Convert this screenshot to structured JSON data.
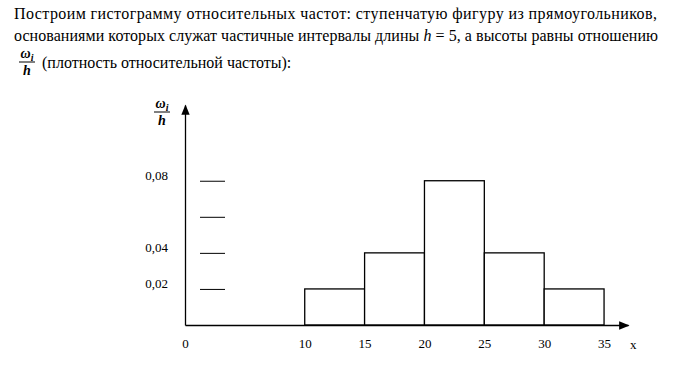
{
  "chart_data": {
    "type": "histogram",
    "annotations": [
      "Построим гистограмму относительных частот: ступенчатую фигуру из прямоугольников,",
      [
        "основаниями которых служат частичные интервалы длины ",
        "h",
        " = 5, а высоты равны отношению"
      ],
      "(плотность относительной частоты):"
    ],
    "ylabel": {
      "numerator": "ω",
      "subscript": "i",
      "denominator": "h"
    },
    "xlabel": "x",
    "bins": [
      10,
      15,
      20,
      25,
      30,
      35
    ],
    "values": [
      0.02,
      0.04,
      0.08,
      0.04,
      0.02
    ],
    "color": "#ffffff",
    "xlim": [
      0,
      37
    ],
    "xticks": [
      0,
      10,
      15,
      20,
      25,
      30,
      35
    ],
    "ylim": [
      0,
      0.122
    ],
    "yticks": [
      {
        "value": 0.02,
        "label": "0,02"
      },
      {
        "value": 0.04,
        "label": "0,04"
      },
      {
        "value": 0.06,
        "label": null
      },
      {
        "value": 0.08,
        "label": "0,08"
      }
    ],
    "grid": false
  }
}
